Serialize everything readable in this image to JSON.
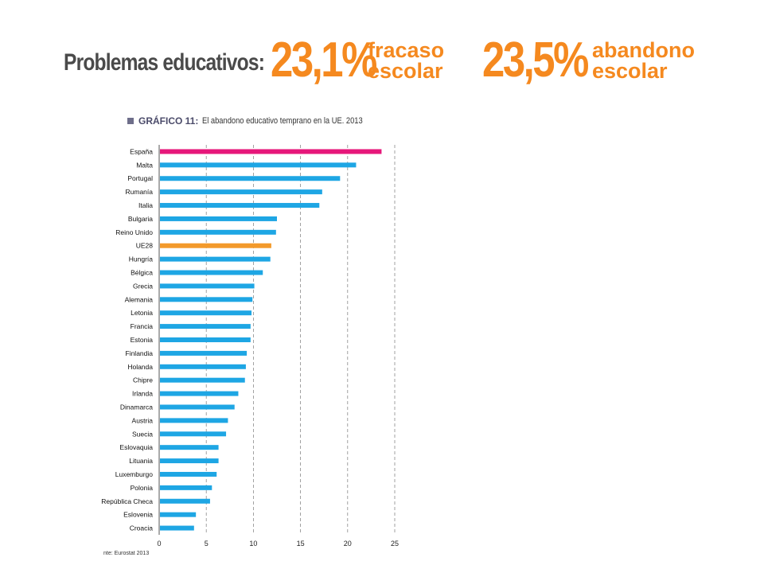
{
  "header": {
    "title": "Problemas educativos:",
    "stat1": {
      "value": "23,1%",
      "line1": "fracaso",
      "line2": "escolar"
    },
    "stat2": {
      "value": "23,5%",
      "line1": "abandono",
      "line2": "escolar"
    },
    "accent_color": "#f5891f"
  },
  "chart_title": {
    "label": "GRÁFICO 11:",
    "text": "El abandono educativo temprano en la UE. 2013"
  },
  "source": "nte: Eurostat 2013",
  "chart_data": {
    "type": "bar",
    "orientation": "horizontal",
    "categories": [
      "España",
      "Malta",
      "Portugal",
      "Rumanía",
      "Italia",
      "Bulgaria",
      "Reino Unido",
      "UE28",
      "Hungría",
      "Bélgica",
      "Grecia",
      "Alemania",
      "Letonia",
      "Francia",
      "Estonia",
      "Finlandia",
      "Holanda",
      "Chipre",
      "Irlanda",
      "Dinamarca",
      "Austria",
      "Suecia",
      "Eslovaquia",
      "Lituania",
      "Luxemburgo",
      "Polonia",
      "República Checa",
      "Eslovenia",
      "Croacia"
    ],
    "values": [
      23.6,
      20.9,
      19.2,
      17.3,
      17.0,
      12.5,
      12.4,
      11.9,
      11.8,
      11.0,
      10.1,
      9.9,
      9.8,
      9.7,
      9.7,
      9.3,
      9.2,
      9.1,
      8.4,
      8.0,
      7.3,
      7.1,
      6.3,
      6.3,
      6.1,
      5.6,
      5.4,
      3.9,
      3.7
    ],
    "highlight": {
      "España": "#e6177a",
      "UE28": "#f39a2b"
    },
    "bar_color": "#1ea6e4",
    "xticks": [
      0,
      5,
      10,
      15,
      20,
      25
    ],
    "xlim": [
      0,
      25
    ],
    "grid": "vertical dashed"
  }
}
